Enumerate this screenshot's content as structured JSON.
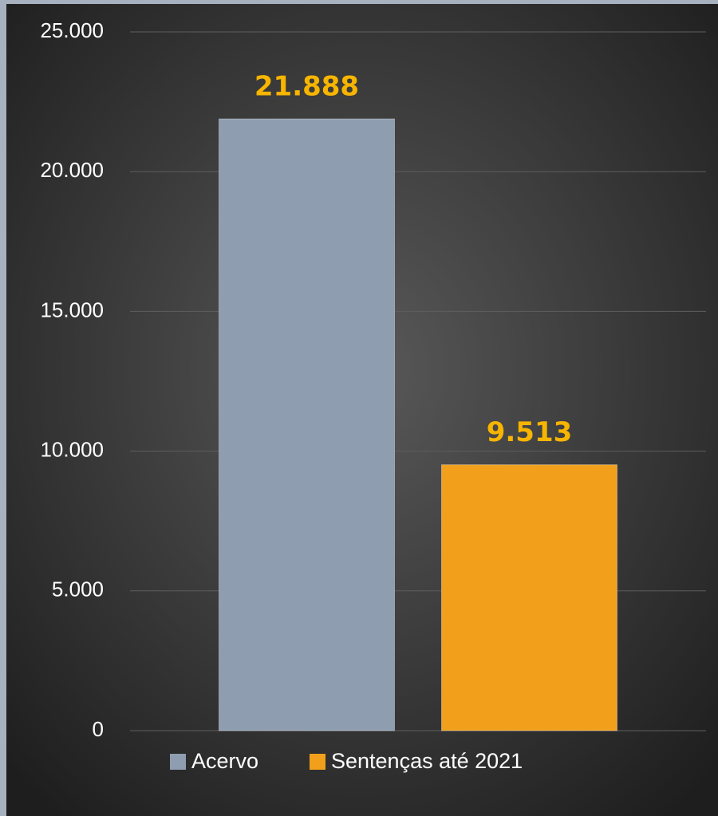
{
  "chart_data": {
    "type": "bar",
    "categories": [
      null
    ],
    "series": [
      {
        "name": "Acervo",
        "color": "#8e9db0",
        "values": [
          21888
        ],
        "value_labels": [
          "21.888"
        ]
      },
      {
        "name": "Sentenças até 2021",
        "color": "#f2a01c",
        "values": [
          9513
        ],
        "value_labels": [
          "9.513"
        ]
      }
    ],
    "ylim": [
      0,
      25000
    ],
    "yticks": [
      0,
      {
        "value": 5000,
        "label": "5.000"
      },
      {
        "value": 10000,
        "label": "10.000"
      },
      {
        "value": 15000,
        "label": "15.000"
      },
      {
        "value": 20000,
        "label": "20.000"
      },
      {
        "value": 25000,
        "label": "25.000"
      }
    ],
    "grid": true,
    "legend": "bottom"
  }
}
